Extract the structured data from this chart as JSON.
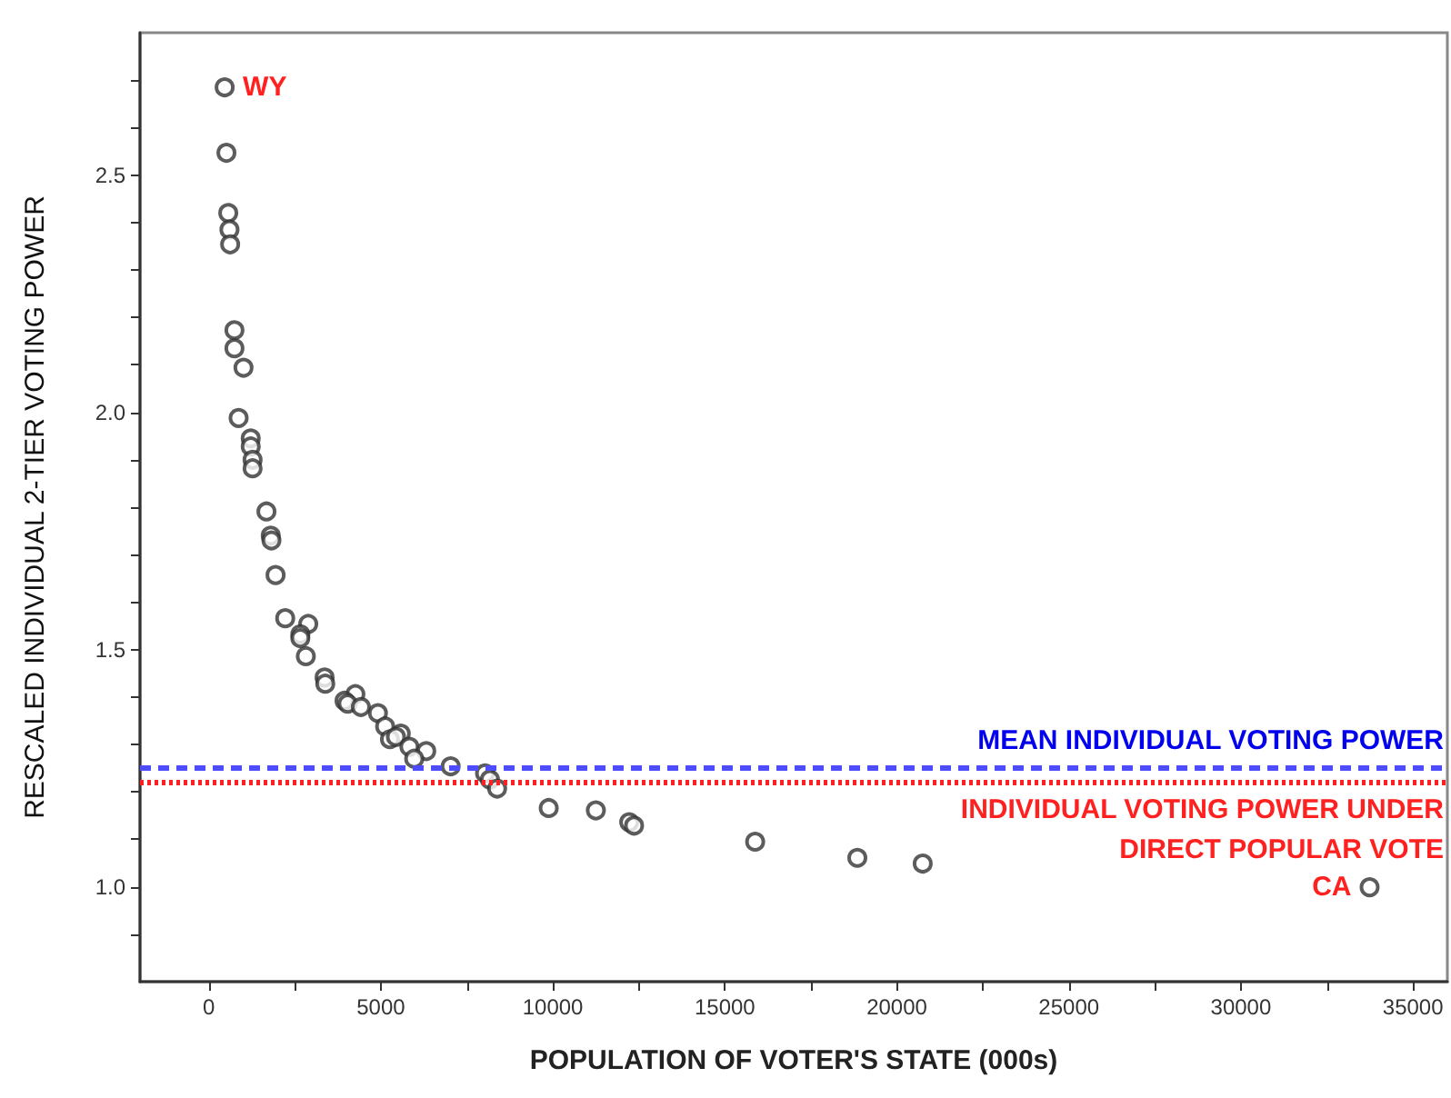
{
  "chart_data": {
    "type": "scatter",
    "xlabel": "POPULATION OF VOTER'S STATE (000s)",
    "ylabel": "RESCALED INDIVIDUAL 2-TIER VOTING POWER",
    "xlim": [
      -2000,
      36000
    ],
    "xticks": [
      0,
      {
        "value": 2500,
        "label": null
      },
      5000,
      {
        "value": 7500,
        "label": null
      },
      10000,
      {
        "value": 12500,
        "label": null
      },
      15000,
      {
        "value": 17500,
        "label": null
      },
      20000,
      {
        "value": 22500,
        "label": null
      },
      25000,
      {
        "value": 27500,
        "label": null
      },
      30000,
      {
        "value": 32500,
        "label": null
      },
      35000
    ],
    "ylim": [
      0.8,
      2.8
    ],
    "yticks": [
      {
        "value": 0.9,
        "label": null
      },
      {
        "value": 1,
        "label": "1.0"
      },
      {
        "value": 1.1,
        "label": null
      },
      {
        "value": 1.2,
        "label": null
      },
      {
        "value": 1.3,
        "label": null
      },
      {
        "value": 1.4,
        "label": null
      },
      {
        "value": 1.5,
        "label": "1.5"
      },
      {
        "value": 1.6,
        "label": null
      },
      {
        "value": 1.7,
        "label": null
      },
      {
        "value": 1.8,
        "label": null
      },
      {
        "value": 1.9,
        "label": null
      },
      {
        "value": 2,
        "label": "2.0"
      },
      {
        "value": 2.1,
        "label": null
      },
      {
        "value": 2.2,
        "label": null
      },
      {
        "value": 2.3,
        "label": null
      },
      {
        "value": 2.4,
        "label": null
      },
      {
        "value": 2.5,
        "label": "2.5"
      },
      {
        "value": 2.6,
        "label": null
      },
      {
        "value": 2.7,
        "label": null
      }
    ],
    "grid": false,
    "marker": "circle",
    "series": [
      {
        "color": "#333333",
        "x": [
          460,
          512,
          565,
          600,
          620,
          745,
          745,
          1008,
          866,
          1218,
          1218,
          1272,
          1272,
          1675,
          1800,
          1820,
          1940,
          2220,
          2890,
          2660,
          2660,
          2820,
          3365,
          3385,
          4260,
          3945,
          4035,
          4420,
          4915,
          5125,
          5580,
          5265,
          5440,
          5830,
          6320,
          5970,
          7030,
          8030,
          8170,
          8380,
          9880,
          11250,
          12220,
          12360,
          15880,
          18850,
          20750,
          33740
        ],
        "values": [
          2.685,
          2.547,
          2.42,
          2.385,
          2.354,
          2.173,
          2.135,
          2.094,
          1.988,
          1.945,
          1.928,
          1.9,
          1.882,
          1.791,
          1.74,
          1.73,
          1.657,
          1.566,
          1.554,
          1.532,
          1.524,
          1.486,
          1.441,
          1.428,
          1.406,
          1.392,
          1.386,
          1.379,
          1.366,
          1.338,
          1.323,
          1.311,
          1.316,
          1.295,
          1.286,
          1.27,
          1.254,
          1.239,
          1.226,
          1.207,
          1.166,
          1.161,
          1.136,
          1.129,
          1.095,
          1.061,
          1.049,
          0.999
        ]
      }
    ],
    "ref_lines": [
      {
        "axis": "y",
        "value": 1.254,
        "label": "MEAN INDIVIDUAL VOTING POWER",
        "color": "#4d4dff",
        "line_style": "dashed"
      },
      {
        "axis": "y",
        "value": 1.216,
        "label": "INDIVIDUAL VOTING POWER UNDER\nDIRECT POPULAR VOTE",
        "color": "#ff2020",
        "line_style": "dotted"
      }
    ],
    "annotations": [
      {
        "text": "WY",
        "x": 460,
        "y": 2.685
      },
      {
        "text": "CA",
        "x": 33740,
        "y": 0.999
      }
    ]
  }
}
